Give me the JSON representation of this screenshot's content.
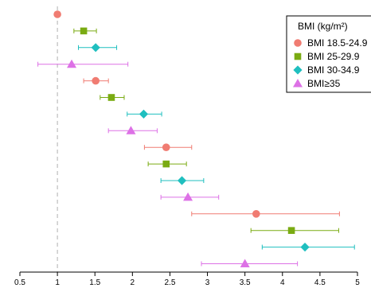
{
  "chart_data": {
    "type": "scatter",
    "subtype": "forest-plot",
    "title": "",
    "xlabel": "",
    "ylabel": "",
    "xlim": [
      0.5,
      5
    ],
    "x_ticks": [
      "0.5",
      "1",
      "1.5",
      "2",
      "2.5",
      "3",
      "3.5",
      "4",
      "4.5",
      "5"
    ],
    "reference_line": {
      "x": 1,
      "style": "dashed",
      "color": "#b0b0b0"
    },
    "grid": false,
    "legend": {
      "title": "BMI (kg/m²)",
      "placement": "top-right",
      "entries": [
        {
          "label": "BMI 18.5-24.9",
          "marker": "circle",
          "color": "#f07c72"
        },
        {
          "label": "BMI 25-29.9",
          "marker": "square",
          "color": "#7aab12"
        },
        {
          "label": "BMI 30-34.9",
          "marker": "diamond",
          "color": "#1fbfbf"
        },
        {
          "label": "BMI≥35",
          "marker": "triangle",
          "color": "#dd71e6"
        }
      ]
    },
    "groups": [
      {
        "points": [
          {
            "series": 0,
            "est": 1.0,
            "lo": 1.0,
            "hi": 1.0
          },
          {
            "series": 1,
            "est": 1.35,
            "lo": 1.22,
            "hi": 1.52
          },
          {
            "series": 2,
            "est": 1.51,
            "lo": 1.28,
            "hi": 1.79
          },
          {
            "series": 3,
            "est": 1.19,
            "lo": 0.74,
            "hi": 1.94
          }
        ]
      },
      {
        "points": [
          {
            "series": 0,
            "est": 1.51,
            "lo": 1.35,
            "hi": 1.68
          },
          {
            "series": 1,
            "est": 1.72,
            "lo": 1.57,
            "hi": 1.89
          },
          {
            "series": 2,
            "est": 2.15,
            "lo": 1.93,
            "hi": 2.39
          },
          {
            "series": 3,
            "est": 1.98,
            "lo": 1.68,
            "hi": 2.33
          }
        ]
      },
      {
        "points": [
          {
            "series": 0,
            "est": 2.45,
            "lo": 2.16,
            "hi": 2.79
          },
          {
            "series": 1,
            "est": 2.45,
            "lo": 2.21,
            "hi": 2.72
          },
          {
            "series": 2,
            "est": 2.66,
            "lo": 2.38,
            "hi": 2.95
          },
          {
            "series": 3,
            "est": 2.74,
            "lo": 2.38,
            "hi": 3.15
          }
        ]
      },
      {
        "points": [
          {
            "series": 0,
            "est": 3.65,
            "lo": 2.79,
            "hi": 4.76
          },
          {
            "series": 1,
            "est": 4.12,
            "lo": 3.58,
            "hi": 4.75
          },
          {
            "series": 2,
            "est": 4.3,
            "lo": 3.73,
            "hi": 4.96
          },
          {
            "series": 3,
            "est": 3.5,
            "lo": 2.92,
            "hi": 4.2
          }
        ]
      }
    ]
  }
}
